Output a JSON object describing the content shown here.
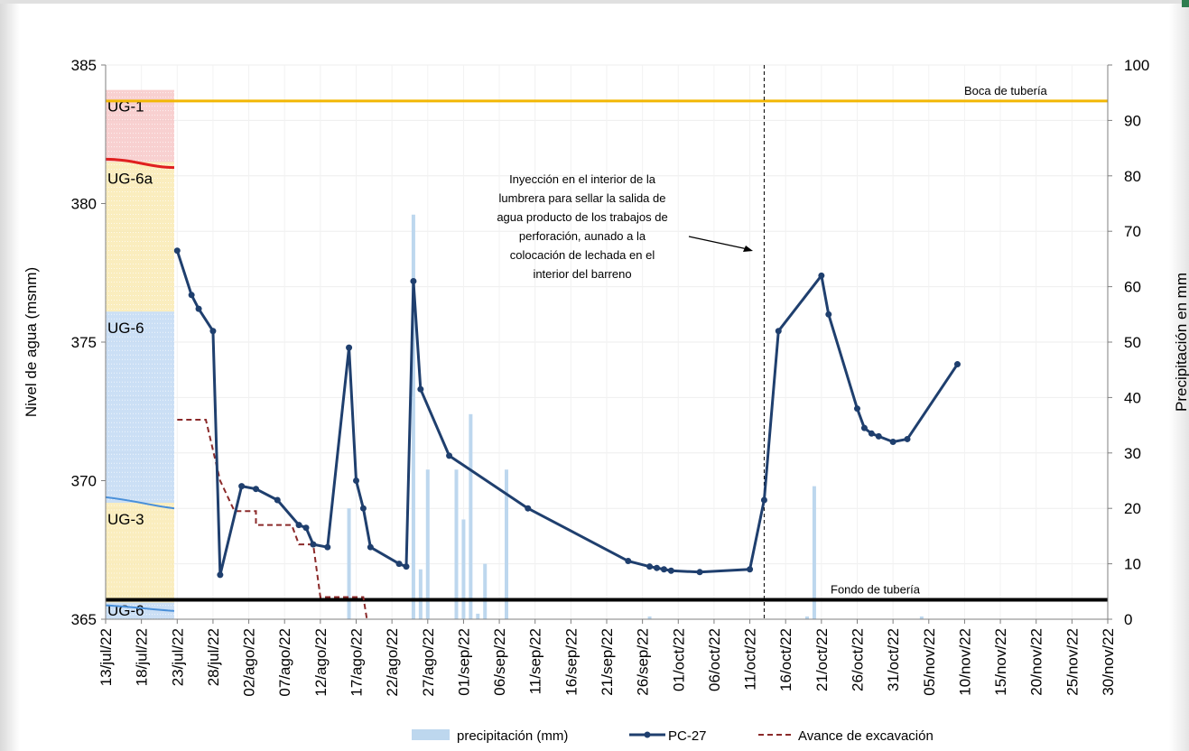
{
  "chart_data": {
    "type": "line",
    "x_axis": {
      "ticks": [
        "13/jul/22",
        "18/jul/22",
        "23/jul/22",
        "28/jul/22",
        "02/ago/22",
        "07/ago/22",
        "12/ago/22",
        "17/ago/22",
        "22/ago/22",
        "27/ago/22",
        "01/sep/22",
        "06/sep/22",
        "11/sep/22",
        "16/sep/22",
        "21/sep/22",
        "26/sep/22",
        "01/oct/22",
        "06/oct/22",
        "11/oct/22",
        "16/oct/22",
        "21/oct/22",
        "26/oct/22",
        "31/oct/22",
        "05/nov/22",
        "10/nov/22",
        "15/nov/22",
        "20/nov/22",
        "25/nov/22",
        "30/nov/22"
      ]
    },
    "y_left": {
      "label": "Nivel de agua (msnm)",
      "min": 365,
      "max": 385,
      "ticks": [
        "365",
        "370",
        "375",
        "380",
        "385"
      ]
    },
    "y_right": {
      "label": "Precipitación en mm",
      "min": 0,
      "max": 100,
      "ticks": [
        "0",
        "10",
        "20",
        "30",
        "40",
        "50",
        "60",
        "70",
        "80",
        "90",
        "100"
      ]
    },
    "series": [
      {
        "name": "PC-27",
        "axis": "left",
        "color": "#1f3f6e",
        "points": [
          [
            10,
            378.3
          ],
          [
            12,
            376.7
          ],
          [
            13,
            376.2
          ],
          [
            15,
            375.4
          ],
          [
            16,
            366.6
          ],
          [
            19,
            369.8
          ],
          [
            21,
            369.7
          ],
          [
            24,
            369.3
          ],
          [
            27,
            368.4
          ],
          [
            28,
            368.3
          ],
          [
            29,
            367.7
          ],
          [
            31,
            367.6
          ],
          [
            34,
            374.8
          ],
          [
            35,
            370.0
          ],
          [
            36,
            369.0
          ],
          [
            37,
            367.6
          ],
          [
            41,
            367.0
          ],
          [
            42,
            366.9
          ],
          [
            43,
            377.2
          ],
          [
            44,
            373.3
          ],
          [
            48,
            370.9
          ],
          [
            59,
            369.0
          ],
          [
            73,
            367.1
          ],
          [
            76,
            366.9
          ],
          [
            77,
            366.85
          ],
          [
            78,
            366.8
          ],
          [
            79,
            366.75
          ],
          [
            83,
            366.7
          ],
          [
            90,
            366.8
          ],
          [
            92,
            369.3
          ],
          [
            94,
            375.4
          ],
          [
            100,
            377.4
          ],
          [
            101,
            376.0
          ],
          [
            105,
            372.6
          ],
          [
            106,
            371.9
          ],
          [
            107,
            371.7
          ],
          [
            108,
            371.6
          ],
          [
            110,
            371.4
          ],
          [
            112,
            371.5
          ],
          [
            119,
            374.2
          ]
        ]
      },
      {
        "name": "Avance de excavación",
        "axis": "left",
        "color": "#8b2a2a",
        "points": [
          [
            10,
            372.2
          ],
          [
            14,
            372.2
          ],
          [
            16,
            370.0
          ],
          [
            18,
            368.9
          ],
          [
            21,
            368.9
          ],
          [
            21,
            368.4
          ],
          [
            26,
            368.4
          ],
          [
            27,
            367.7
          ],
          [
            29,
            367.7
          ],
          [
            30,
            365.8
          ],
          [
            35,
            365.8
          ],
          [
            36,
            365.8
          ],
          [
            36.5,
            365
          ]
        ]
      },
      {
        "name": "precipitación (mm)",
        "axis": "right",
        "color": "#bdd7ee",
        "bars": [
          [
            34,
            20
          ],
          [
            43,
            73
          ],
          [
            44,
            9
          ],
          [
            45,
            27
          ],
          [
            49,
            27
          ],
          [
            50,
            18
          ],
          [
            51,
            37
          ],
          [
            52,
            1
          ],
          [
            53,
            10
          ],
          [
            56,
            27
          ],
          [
            76,
            0.5
          ],
          [
            98,
            0.5
          ],
          [
            99,
            24
          ],
          [
            114,
            0.5
          ]
        ]
      }
    ],
    "reference_lines": [
      {
        "label": "Boca de tubería",
        "value": 383.7,
        "color": "#f2b705"
      },
      {
        "label": "Fondo de tubería",
        "value": 365.7,
        "color": "#000000"
      }
    ],
    "vertical_marker": {
      "x": 92
    },
    "annotation": {
      "lines": [
        "Inyección en el interior de la",
        "lumbrera para sellar la salida de",
        "agua producto de los trabajos de",
        "perforación, aunado a la",
        "colocación de lechada en el",
        "interior del barreno"
      ]
    },
    "strata": [
      {
        "label": "UG-1",
        "y_top": 384.1,
        "y_bottom": 381.5,
        "color": "#f5c0c0"
      },
      {
        "label": "UG-6a",
        "y_top": 381.5,
        "y_bottom": 376.1,
        "color": "#f8e7a8"
      },
      {
        "label": "UG-6",
        "y_top": 376.1,
        "y_bottom": 369.2,
        "color": "#b9d4f1"
      },
      {
        "label": "UG-3",
        "y_top": 369.2,
        "y_bottom": 365.6,
        "color": "#f8e7a8"
      },
      {
        "label": "UG-6",
        "y_top": 365.6,
        "y_bottom": 365.0,
        "color": "#b9d4f1"
      }
    ],
    "legend": {
      "position": "bottom",
      "items": [
        "precipitación (mm)",
        "PC-27",
        "Avance de excavación"
      ]
    }
  }
}
